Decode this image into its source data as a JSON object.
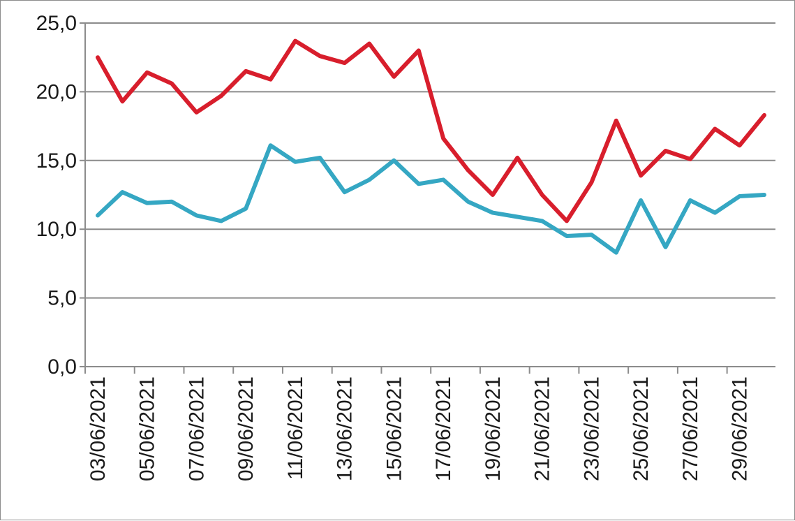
{
  "chart_data": {
    "type": "line",
    "title": "",
    "xlabel": "",
    "ylabel": "",
    "ylim": [
      0,
      25
    ],
    "y_ticks": [
      "0,0",
      "5,0",
      "10,0",
      "15,0",
      "20,0",
      "25,0"
    ],
    "y_tick_values": [
      0,
      5,
      10,
      15,
      20,
      25
    ],
    "x": [
      "03/06/2021",
      "04/06/2021",
      "05/06/2021",
      "06/06/2021",
      "07/06/2021",
      "08/06/2021",
      "09/06/2021",
      "10/06/2021",
      "11/06/2021",
      "12/06/2021",
      "13/06/2021",
      "14/06/2021",
      "15/06/2021",
      "16/06/2021",
      "17/06/2021",
      "18/06/2021",
      "19/06/2021",
      "20/06/2021",
      "21/06/2021",
      "22/06/2021",
      "23/06/2021",
      "24/06/2021",
      "25/06/2021",
      "26/06/2021",
      "27/06/2021",
      "28/06/2021",
      "29/06/2021",
      "30/06/2021"
    ],
    "x_tick_labels": [
      "03/06/2021",
      "05/06/2021",
      "07/06/2021",
      "09/06/2021",
      "11/06/2021",
      "13/06/2021",
      "15/06/2021",
      "17/06/2021",
      "19/06/2021",
      "21/06/2021",
      "23/06/2021",
      "25/06/2021",
      "27/06/2021",
      "29/06/2021"
    ],
    "grid": "horizontal",
    "legend": "none",
    "series": [
      {
        "color": "#d81e2c",
        "values": [
          22.5,
          19.3,
          21.4,
          20.6,
          18.5,
          19.7,
          21.5,
          20.9,
          23.7,
          22.6,
          22.1,
          23.5,
          21.1,
          23.0,
          16.6,
          14.3,
          12.5,
          15.2,
          12.5,
          10.6,
          13.4,
          17.9,
          13.9,
          15.7,
          15.1,
          17.3,
          16.1,
          18.3
        ]
      },
      {
        "color": "#35a7c3",
        "values": [
          11.0,
          12.7,
          11.9,
          12.0,
          11.0,
          10.6,
          11.5,
          16.1,
          14.9,
          15.2,
          12.7,
          13.6,
          15.0,
          13.3,
          13.6,
          12.0,
          11.2,
          10.9,
          10.6,
          9.5,
          9.6,
          8.3,
          12.1,
          8.7,
          12.1,
          11.2,
          12.4,
          12.5
        ]
      }
    ]
  }
}
